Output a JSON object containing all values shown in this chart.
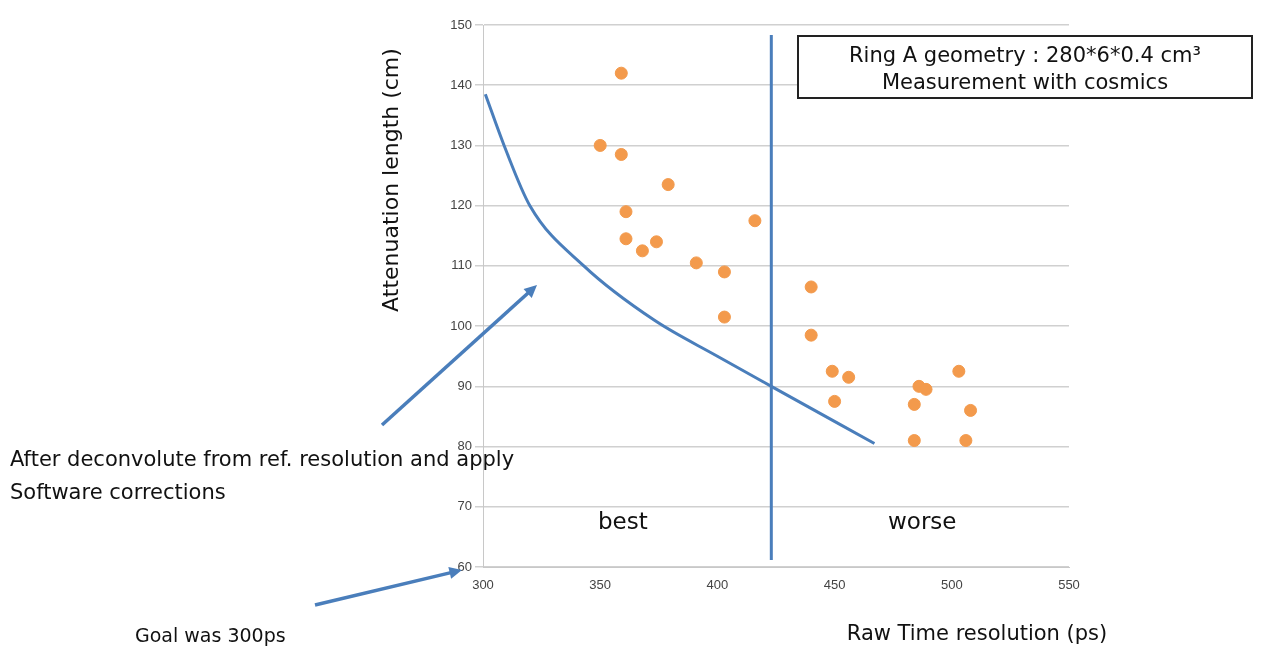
{
  "chart_data": {
    "type": "scatter",
    "xlabel": "Raw Time resolution (ps)",
    "ylabel": "Attenuation length (cm)",
    "xlim": [
      300,
      550
    ],
    "xticks": [
      300,
      350,
      400,
      450,
      500,
      550
    ],
    "ylim": [
      60,
      150
    ],
    "yticks": [
      60,
      70,
      80,
      90,
      100,
      110,
      120,
      130,
      140,
      150
    ],
    "grid": "y",
    "legend": false,
    "marker": "circle",
    "series": [
      {
        "color": "#f39a4c",
        "x": [
          359,
          350,
          359,
          379,
          361,
          416,
          361,
          374,
          368,
          391,
          403,
          440,
          403,
          440,
          449,
          450,
          456,
          486,
          489,
          503,
          484,
          508,
          484,
          506
        ],
        "values": [
          142,
          130,
          128.5,
          123.5,
          119,
          117.5,
          114.5,
          114,
          112.5,
          110.5,
          109,
          106.5,
          101.5,
          98.5,
          92.5,
          87.5,
          91.5,
          90,
          89.5,
          92.5,
          87,
          86,
          81,
          81
        ]
      },
      {
        "type": "line",
        "color": "#4a7ebb",
        "marker": "none",
        "x": [
          301,
          309,
          320,
          343,
          373,
          400,
          423,
          467
        ],
        "values": [
          138.5,
          130,
          120,
          110,
          101,
          95,
          90,
          80.5
        ]
      }
    ],
    "ref_lines": [
      {
        "axis": "x",
        "value": 423,
        "color": "#4a7ebb"
      }
    ],
    "annotations": [
      "Ring A geometry : 280*6*0.4 cm³",
      "Measurement with cosmics",
      "best",
      "worse",
      "After deconvolute from ref. resolution and apply Software corrections",
      "Goal was 300ps"
    ]
  }
}
